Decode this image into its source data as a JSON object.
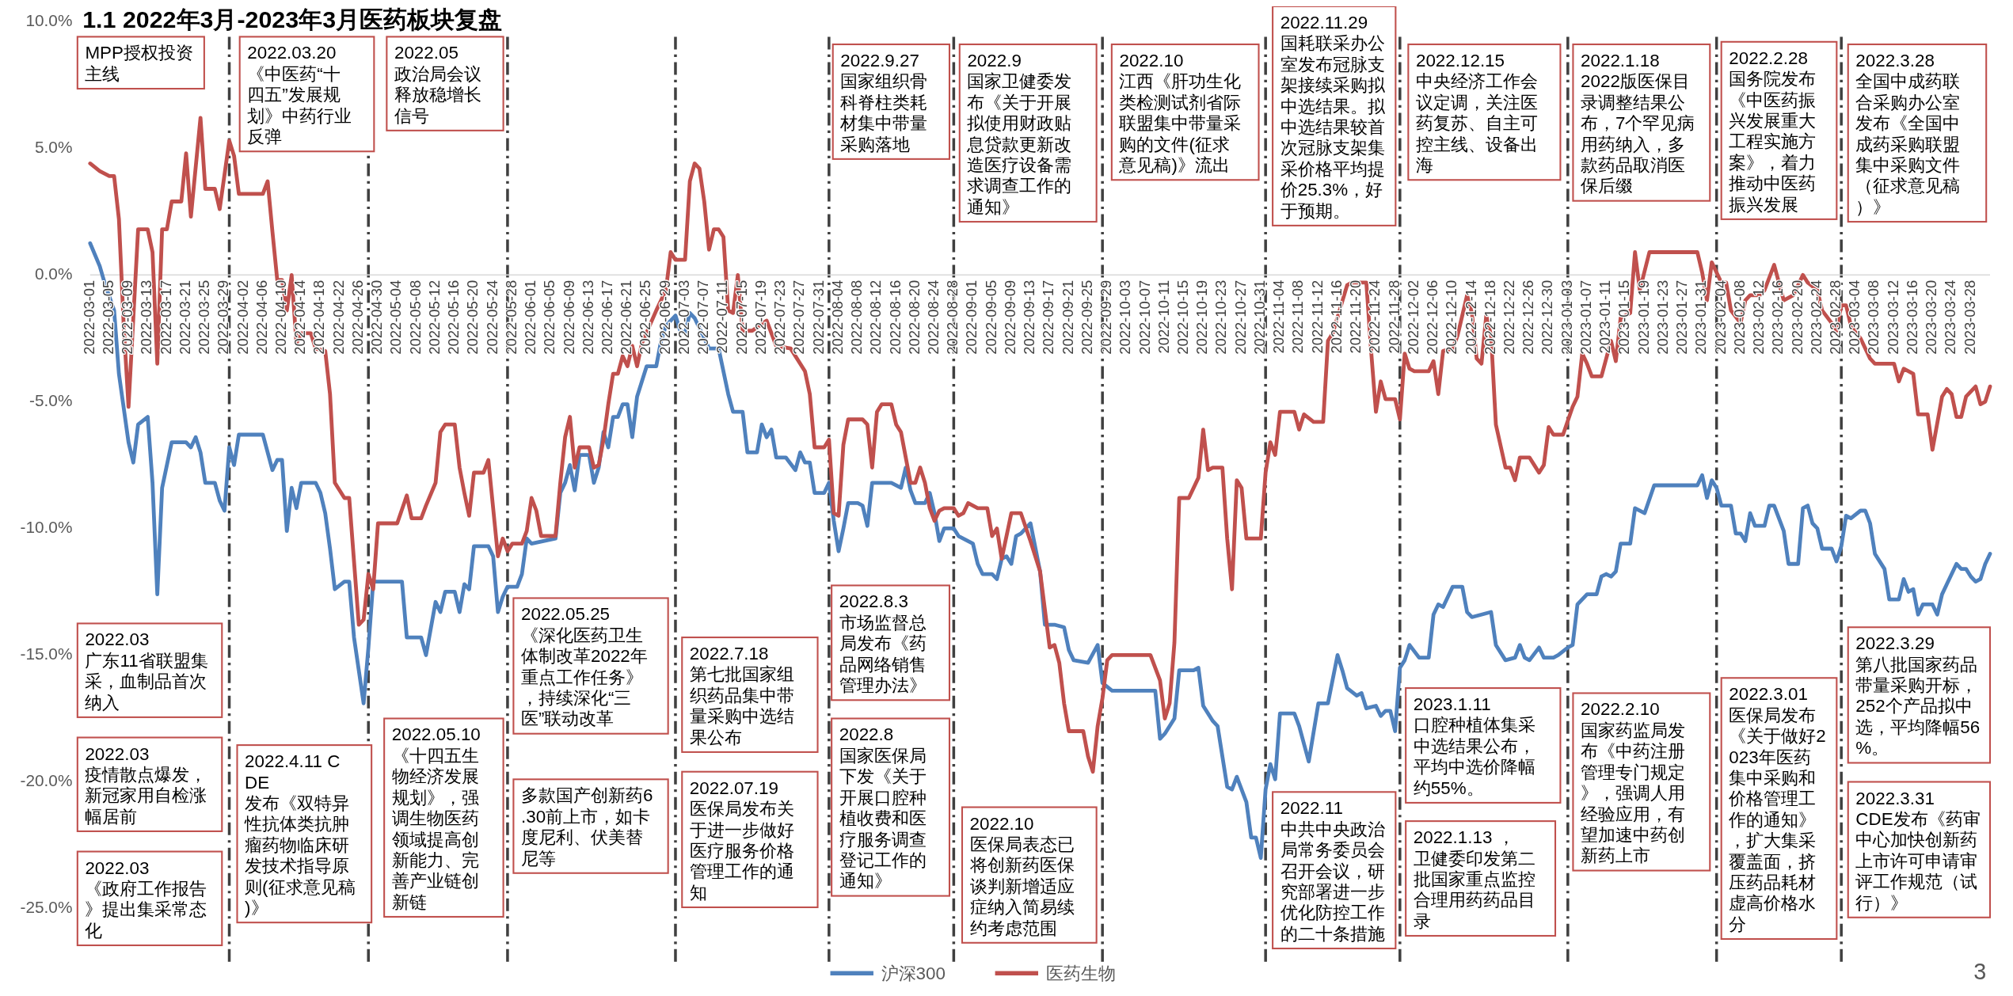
{
  "chart_data": {
    "type": "line",
    "title": "1.1 2022年3月-2023年3月医药板块复盘",
    "xlim": [
      "2022-03-01",
      "2023-04-01"
    ],
    "xticks": [
      "2022-03-01",
      "2022-03-05",
      "2022-03-09",
      "2022-03-13",
      "2022-03-17",
      "2022-03-21",
      "2022-03-25",
      "2022-03-29",
      "2022-04-02",
      "2022-04-06",
      "2022-04-10",
      "2022-04-14",
      "2022-04-18",
      "2022-04-22",
      "2022-04-26",
      "2022-04-30",
      "2022-05-04",
      "2022-05-08",
      "2022-05-12",
      "2022-05-16",
      "2022-05-20",
      "2022-05-24",
      "2022-05-28",
      "2022-06-01",
      "2022-06-05",
      "2022-06-09",
      "2022-06-13",
      "2022-06-17",
      "2022-06-21",
      "2022-06-25",
      "2022-06-29",
      "2022-07-03",
      "2022-07-07",
      "2022-07-11",
      "2022-07-15",
      "2022-07-19",
      "2022-07-23",
      "2022-07-27",
      "2022-07-31",
      "2022-08-04",
      "2022-08-08",
      "2022-08-12",
      "2022-08-16",
      "2022-08-20",
      "2022-08-24",
      "2022-08-28",
      "2022-09-01",
      "2022-09-05",
      "2022-09-09",
      "2022-09-13",
      "2022-09-17",
      "2022-09-21",
      "2022-09-25",
      "2022-09-29",
      "2022-10-03",
      "2022-10-07",
      "2022-10-11",
      "2022-10-15",
      "2022-10-19",
      "2022-10-23",
      "2022-10-27",
      "2022-10-31",
      "2022-11-04",
      "2022-11-08",
      "2022-11-12",
      "2022-11-16",
      "2022-11-20",
      "2022-11-24",
      "2022-11-28",
      "2022-12-02",
      "2022-12-06",
      "2022-12-10",
      "2022-12-14",
      "2022-12-18",
      "2022-12-22",
      "2022-12-26",
      "2022-12-30",
      "2023-01-03",
      "2023-01-07",
      "2023-01-11",
      "2023-01-15",
      "2023-01-19",
      "2023-01-23",
      "2023-01-27",
      "2023-01-31",
      "2023-02-04",
      "2023-02-08",
      "2023-02-12",
      "2023-02-16",
      "2023-02-20",
      "2023-02-24",
      "2023-02-28",
      "2023-03-04",
      "2023-03-08",
      "2023-03-12",
      "2023-03-16",
      "2023-03-20",
      "2023-03-24",
      "2023-03-28"
    ],
    "ylim": [
      -25,
      10
    ],
    "yticks": [
      {
        "value": 10,
        "label": "10.0%"
      },
      {
        "value": 5,
        "label": "5.0%"
      },
      {
        "value": 0,
        "label": "0.0%"
      },
      {
        "value": -5,
        "label": "-5.0%"
      },
      {
        "value": -10,
        "label": "-10.0%"
      },
      {
        "value": -15,
        "label": "-15.0%"
      },
      {
        "value": -20,
        "label": "-20.0%"
      },
      {
        "value": -25,
        "label": "-25.0%"
      }
    ],
    "legend": "bottom",
    "series": [
      {
        "name": "沪深300",
        "color": "#4f81bd",
        "x": [
          "2022-03-01",
          "2022-03-03",
          "2022-03-04",
          "2022-03-06",
          "2022-03-07",
          "2022-03-09",
          "2022-03-10",
          "2022-03-11",
          "2022-03-13",
          "2022-03-14",
          "2022-03-15",
          "2022-03-16",
          "2022-03-18",
          "2022-03-21",
          "2022-03-22",
          "2022-03-23",
          "2022-03-24",
          "2022-03-25",
          "2022-03-27",
          "2022-03-28",
          "2022-03-29",
          "2022-03-30",
          "2022-03-31",
          "2022-04-01",
          "2022-04-06",
          "2022-04-08",
          "2022-04-09",
          "2022-04-10",
          "2022-04-11",
          "2022-04-12",
          "2022-04-13",
          "2022-04-14",
          "2022-04-17",
          "2022-04-18",
          "2022-04-19",
          "2022-04-20",
          "2022-04-21",
          "2022-04-23",
          "2022-04-24",
          "2022-04-25",
          "2022-04-27",
          "2022-04-28",
          "2022-04-29",
          "2022-05-05",
          "2022-05-06",
          "2022-05-09",
          "2022-05-10",
          "2022-05-12",
          "2022-05-13",
          "2022-05-14",
          "2022-05-16",
          "2022-05-17",
          "2022-05-18",
          "2022-05-19",
          "2022-05-20",
          "2022-05-23",
          "2022-05-24",
          "2022-05-25",
          "2022-05-26",
          "2022-05-27",
          "2022-05-29",
          "2022-05-30",
          "2022-05-31",
          "2022-06-01",
          "2022-06-06",
          "2022-06-07",
          "2022-06-08",
          "2022-06-09",
          "2022-06-10",
          "2022-06-11",
          "2022-06-13",
          "2022-06-14",
          "2022-06-15",
          "2022-06-16",
          "2022-06-17",
          "2022-06-18",
          "2022-06-19",
          "2022-06-20",
          "2022-06-21",
          "2022-06-22",
          "2022-06-23",
          "2022-06-25",
          "2022-06-27",
          "2022-06-28",
          "2022-06-29",
          "2022-07-01",
          "2022-07-02",
          "2022-07-03",
          "2022-07-04",
          "2022-07-05",
          "2022-07-07",
          "2022-07-08",
          "2022-07-10",
          "2022-07-12",
          "2022-07-13",
          "2022-07-15",
          "2022-07-16",
          "2022-07-18",
          "2022-07-19",
          "2022-07-20",
          "2022-07-21",
          "2022-07-22",
          "2022-07-24",
          "2022-07-26",
          "2022-07-27",
          "2022-07-28",
          "2022-07-29",
          "2022-07-30",
          "2022-08-01",
          "2022-08-02",
          "2022-08-03",
          "2022-08-04",
          "2022-08-05",
          "2022-08-06",
          "2022-08-08",
          "2022-08-09",
          "2022-08-10",
          "2022-08-11",
          "2022-08-15",
          "2022-08-17",
          "2022-08-18",
          "2022-08-19",
          "2022-08-20",
          "2022-08-22",
          "2022-08-23",
          "2022-08-24",
          "2022-08-25",
          "2022-08-26",
          "2022-08-28",
          "2022-08-29",
          "2022-09-01",
          "2022-09-02",
          "2022-09-03",
          "2022-09-05",
          "2022-09-06",
          "2022-09-07",
          "2022-09-08",
          "2022-09-09",
          "2022-09-10",
          "2022-09-11",
          "2022-09-13",
          "2022-09-15",
          "2022-09-16",
          "2022-09-18",
          "2022-09-20",
          "2022-09-21",
          "2022-09-22",
          "2022-09-25",
          "2022-09-27",
          "2022-09-28",
          "2022-09-30",
          "2022-10-09",
          "2022-10-10",
          "2022-10-11",
          "2022-10-13",
          "2022-10-14",
          "2022-10-17",
          "2022-10-18",
          "2022-10-19",
          "2022-10-21",
          "2022-10-22",
          "2022-10-24",
          "2022-10-25",
          "2022-10-26",
          "2022-10-28",
          "2022-10-29",
          "2022-10-30",
          "2022-10-31",
          "2022-11-01",
          "2022-11-02",
          "2022-11-03",
          "2022-11-04",
          "2022-11-07",
          "2022-11-08",
          "2022-11-10",
          "2022-11-12",
          "2022-11-14",
          "2022-11-16",
          "2022-11-17",
          "2022-11-18",
          "2022-11-20",
          "2022-11-21",
          "2022-11-22",
          "2022-11-24",
          "2022-11-25",
          "2022-11-26",
          "2022-11-27",
          "2022-11-28",
          "2022-11-29",
          "2022-11-30",
          "2022-12-01",
          "2022-12-03",
          "2022-12-05",
          "2022-12-06",
          "2022-12-07",
          "2022-12-08",
          "2022-12-10",
          "2022-12-12",
          "2022-12-13",
          "2022-12-14",
          "2022-12-16",
          "2022-12-18",
          "2022-12-19",
          "2022-12-21",
          "2022-12-23",
          "2022-12-24",
          "2022-12-25",
          "2022-12-26",
          "2022-12-28",
          "2022-12-29",
          "2022-12-31",
          "2023-01-01",
          "2023-01-03",
          "2023-01-04",
          "2023-01-05",
          "2023-01-07",
          "2023-01-09",
          "2023-01-10",
          "2023-01-11",
          "2023-01-12",
          "2023-01-13",
          "2023-01-14",
          "2023-01-16",
          "2023-01-17",
          "2023-01-19",
          "2023-01-21",
          "2023-01-30",
          "2023-01-31",
          "2023-02-01",
          "2023-02-02",
          "2023-02-03",
          "2023-02-04",
          "2023-02-06",
          "2023-02-07",
          "2023-02-08",
          "2023-02-09",
          "2023-02-10",
          "2023-02-11",
          "2023-02-13",
          "2023-02-14",
          "2023-02-15",
          "2023-02-16",
          "2023-02-17",
          "2023-02-18",
          "2023-02-20",
          "2023-02-21",
          "2023-02-22",
          "2023-02-23",
          "2023-02-24",
          "2023-02-25",
          "2023-02-27",
          "2023-02-28",
          "2023-03-01",
          "2023-03-02",
          "2023-03-03",
          "2023-03-05",
          "2023-03-06",
          "2023-03-07",
          "2023-03-08",
          "2023-03-10",
          "2023-03-11",
          "2023-03-13",
          "2023-03-14",
          "2023-03-15",
          "2023-03-16",
          "2023-03-17",
          "2023-03-18",
          "2023-03-20",
          "2023-03-21",
          "2023-03-22",
          "2023-03-23",
          "2023-03-25",
          "2023-03-26",
          "2023-03-27",
          "2023-03-28",
          "2023-03-29",
          "2023-03-30",
          "2023-03-31",
          "2023-04-01"
        ],
        "values": [
          1.25,
          0.35,
          -0.3,
          -1.4,
          -3.9,
          -6.6,
          -7.4,
          -5.9,
          -5.6,
          -8.2,
          -12.6,
          -8.4,
          -6.6,
          -6.6,
          -6.8,
          -6.4,
          -7.0,
          -8.2,
          -8.2,
          -8.9,
          -9.3,
          -6.8,
          -7.5,
          -6.3,
          -6.3,
          -7.7,
          -7.3,
          -7.3,
          -10.1,
          -8.4,
          -9.2,
          -8.2,
          -8.2,
          -8.6,
          -9.4,
          -10.8,
          -12.4,
          -12.1,
          -12.1,
          -14.3,
          -16.9,
          -14.7,
          -12.1,
          -12.1,
          -14.3,
          -14.3,
          -15.0,
          -12.9,
          -13.3,
          -12.5,
          -12.5,
          -13.3,
          -12.2,
          -12.4,
          -10.7,
          -10.7,
          -11.1,
          -13.3,
          -12.7,
          -12.3,
          -12.3,
          -11.8,
          -10.4,
          -10.6,
          -10.4,
          -8.6,
          -8.2,
          -7.5,
          -8.5,
          -7.1,
          -7.1,
          -8.2,
          -7.6,
          -6.2,
          -6.8,
          -5.6,
          -5.6,
          -5.1,
          -5.1,
          -6.4,
          -4.8,
          -3.6,
          -3.6,
          -2.6,
          -2.0,
          -1.6,
          -2.2,
          -2.3,
          -1.5,
          -1.7,
          -2.5,
          -2.9,
          -2.9,
          -4.7,
          -5.4,
          -5.4,
          -7.0,
          -7.0,
          -5.9,
          -6.4,
          -6.1,
          -7.2,
          -7.2,
          -7.7,
          -7.0,
          -7.4,
          -7.4,
          -8.6,
          -8.6,
          -8.2,
          -9.7,
          -10.9,
          -10.0,
          -9.0,
          -9.0,
          -9.1,
          -9.9,
          -8.2,
          -8.2,
          -8.4,
          -7.6,
          -8.5,
          -9.0,
          -9.0,
          -8.6,
          -9.4,
          -10.5,
          -10.0,
          -10.0,
          -10.3,
          -10.6,
          -11.4,
          -11.8,
          -11.8,
          -12.0,
          -11.2,
          -11.1,
          -11.4,
          -10.3,
          -10.2,
          -9.8,
          -11.7,
          -13.8,
          -13.8,
          -13.9,
          -14.8,
          -15.2,
          -15.3,
          -14.6,
          -16.1,
          -16.4,
          -16.4,
          -18.3,
          -18.1,
          -17.5,
          -15.6,
          -15.6,
          -15.5,
          -17.0,
          -17.6,
          -17.8,
          -20.2,
          -20.3,
          -19.8,
          -20.8,
          -22.2,
          -22.2,
          -23.0,
          -20.3,
          -19.3,
          -19.9,
          -17.3,
          -17.3,
          -17.8,
          -19.2,
          -16.9,
          -16.9,
          -15.0,
          -15.6,
          -16.3,
          -16.6,
          -16.5,
          -17.1,
          -17.0,
          -17.4,
          -17.2,
          -17.2,
          -18.0,
          -15.5,
          -15.2,
          -14.6,
          -15.1,
          -15.1,
          -13.4,
          -13.0,
          -13.1,
          -12.3,
          -12.3,
          -13.3,
          -13.5,
          -13.4,
          -13.3,
          -14.6,
          -15.2,
          -15.1,
          -14.6,
          -15.1,
          -15.2,
          -14.7,
          -15.1,
          -15.1,
          -15.0,
          -14.7,
          -14.6,
          -13.0,
          -12.6,
          -12.6,
          -11.9,
          -11.8,
          -11.9,
          -11.7,
          -10.6,
          -10.6,
          -9.2,
          -9.4,
          -8.3,
          -8.3,
          -7.9,
          -8.8,
          -8.1,
          -8.4,
          -9.1,
          -9.1,
          -10.2,
          -10.2,
          -10.5,
          -9.4,
          -9.9,
          -9.9,
          -9.1,
          -9.1,
          -9.6,
          -10.1,
          -11.4,
          -11.4,
          -9.2,
          -9.1,
          -9.8,
          -10.0,
          -10.8,
          -10.8,
          -11.3,
          -10.7,
          -9.5,
          -9.6,
          -9.3,
          -9.3,
          -9.8,
          -11.0,
          -11.6,
          -12.8,
          -12.8,
          -12.0,
          -12.5,
          -12.4,
          -13.4,
          -13.0,
          -13.0,
          -13.4,
          -12.6,
          -12.2,
          -11.4,
          -11.6,
          -11.6,
          -11.9,
          -12.1,
          -12.0,
          -11.4,
          -11.0
        ]
      },
      {
        "name": "医药生物",
        "color": "#c0504d",
        "x": [
          "2022-03-01",
          "2022-03-03",
          "2022-03-05",
          "2022-03-06",
          "2022-03-07",
          "2022-03-08",
          "2022-03-09",
          "2022-03-11",
          "2022-03-13",
          "2022-03-14",
          "2022-03-15",
          "2022-03-16",
          "2022-03-17",
          "2022-03-18",
          "2022-03-20",
          "2022-03-21",
          "2022-03-22",
          "2022-03-24",
          "2022-03-25",
          "2022-03-27",
          "2022-03-28",
          "2022-03-30",
          "2022-03-31",
          "2022-04-01",
          "2022-04-06",
          "2022-04-07",
          "2022-04-08",
          "2022-04-09",
          "2022-04-10",
          "2022-04-11",
          "2022-04-12",
          "2022-04-13",
          "2022-04-14",
          "2022-04-16",
          "2022-04-17",
          "2022-04-19",
          "2022-04-20",
          "2022-04-21",
          "2022-04-23",
          "2022-04-24",
          "2022-04-26",
          "2022-04-27",
          "2022-04-28",
          "2022-04-29",
          "2022-04-30",
          "2022-05-04",
          "2022-05-06",
          "2022-05-07",
          "2022-05-09",
          "2022-05-10",
          "2022-05-12",
          "2022-05-13",
          "2022-05-14",
          "2022-05-16",
          "2022-05-17",
          "2022-05-18",
          "2022-05-19",
          "2022-05-20",
          "2022-05-22",
          "2022-05-23",
          "2022-05-25",
          "2022-05-26",
          "2022-05-27",
          "2022-05-28",
          "2022-05-30",
          "2022-05-31",
          "2022-06-01",
          "2022-06-02",
          "2022-06-03",
          "2022-06-06",
          "2022-06-07",
          "2022-06-08",
          "2022-06-09",
          "2022-06-10",
          "2022-06-11",
          "2022-06-13",
          "2022-06-14",
          "2022-06-15",
          "2022-06-16",
          "2022-06-17",
          "2022-06-18",
          "2022-06-19",
          "2022-06-20",
          "2022-06-21",
          "2022-06-22",
          "2022-06-23",
          "2022-06-24",
          "2022-06-27",
          "2022-06-29",
          "2022-06-30",
          "2022-07-01",
          "2022-07-03",
          "2022-07-04",
          "2022-07-05",
          "2022-07-06",
          "2022-07-07",
          "2022-07-08",
          "2022-07-09",
          "2022-07-10",
          "2022-07-11",
          "2022-07-12",
          "2022-07-13",
          "2022-07-14",
          "2022-07-15",
          "2022-07-17",
          "2022-07-20",
          "2022-07-22",
          "2022-07-25",
          "2022-07-28",
          "2022-07-29",
          "2022-07-30",
          "2022-08-01",
          "2022-08-02",
          "2022-08-03",
          "2022-08-04",
          "2022-08-05",
          "2022-08-06",
          "2022-08-09",
          "2022-08-10",
          "2022-08-11",
          "2022-08-12",
          "2022-08-13",
          "2022-08-15",
          "2022-08-16",
          "2022-08-17",
          "2022-08-18",
          "2022-08-19",
          "2022-08-20",
          "2022-08-21",
          "2022-08-22",
          "2022-08-23",
          "2022-08-24",
          "2022-08-25",
          "2022-08-26",
          "2022-08-28",
          "2022-08-29",
          "2022-08-30",
          "2022-08-31",
          "2022-09-02",
          "2022-09-04",
          "2022-09-05",
          "2022-09-06",
          "2022-09-07",
          "2022-09-09",
          "2022-09-11",
          "2022-09-13",
          "2022-09-15",
          "2022-09-17",
          "2022-09-18",
          "2022-09-19",
          "2022-09-20",
          "2022-09-21",
          "2022-09-24",
          "2022-09-25",
          "2022-09-26",
          "2022-09-27",
          "2022-09-28",
          "2022-09-29",
          "2022-09-30",
          "2022-10-08",
          "2022-10-10",
          "2022-10-11",
          "2022-10-12",
          "2022-10-13",
          "2022-10-14",
          "2022-10-16",
          "2022-10-18",
          "2022-10-19",
          "2022-10-20",
          "2022-10-21",
          "2022-10-23",
          "2022-10-24",
          "2022-10-25",
          "2022-10-26",
          "2022-10-27",
          "2022-10-28",
          "2022-10-31",
          "2022-11-01",
          "2022-11-02",
          "2022-11-03",
          "2022-11-04",
          "2022-11-07",
          "2022-11-08",
          "2022-11-09",
          "2022-11-11",
          "2022-11-13",
          "2022-11-14",
          "2022-11-15",
          "2022-11-18",
          "2022-11-19",
          "2022-11-22",
          "2022-11-23",
          "2022-11-24",
          "2022-11-25",
          "2022-11-26",
          "2022-11-28",
          "2022-11-29",
          "2022-11-30",
          "2022-12-01",
          "2022-12-02",
          "2022-12-05",
          "2022-12-06",
          "2022-12-07",
          "2022-12-08",
          "2022-12-10",
          "2022-12-11",
          "2022-12-13",
          "2022-12-14",
          "2022-12-15",
          "2022-12-16",
          "2022-12-17",
          "2022-12-18",
          "2022-12-19",
          "2022-12-21",
          "2022-12-22",
          "2022-12-23",
          "2022-12-24",
          "2022-12-26",
          "2022-12-27",
          "2022-12-28",
          "2022-12-29",
          "2022-12-30",
          "2022-12-31",
          "2023-01-02",
          "2023-01-04",
          "2023-01-05",
          "2023-01-06",
          "2023-01-07",
          "2023-01-08",
          "2023-01-10",
          "2023-01-11",
          "2023-01-12",
          "2023-01-13",
          "2023-01-14",
          "2023-01-16",
          "2023-01-17",
          "2023-01-18",
          "2023-01-20",
          "2023-01-30",
          "2023-01-31",
          "2023-02-01",
          "2023-02-02",
          "2023-02-04",
          "2023-02-05",
          "2023-02-06",
          "2023-02-08",
          "2023-02-09",
          "2023-02-10",
          "2023-02-12",
          "2023-02-13",
          "2023-02-15",
          "2023-02-17",
          "2023-02-19",
          "2023-02-21",
          "2023-02-22",
          "2023-02-24",
          "2023-02-25",
          "2023-02-27",
          "2023-02-28",
          "2023-03-01",
          "2023-03-02",
          "2023-03-03",
          "2023-03-05",
          "2023-03-07",
          "2023-03-08",
          "2023-03-10",
          "2023-03-12",
          "2023-03-13",
          "2023-03-14",
          "2023-03-16",
          "2023-03-17",
          "2023-03-19",
          "2023-03-20",
          "2023-03-22",
          "2023-03-23",
          "2023-03-24",
          "2023-03-25",
          "2023-03-26",
          "2023-03-27",
          "2023-03-29",
          "2023-03-30",
          "2023-03-31",
          "2023-04-01"
        ],
        "values": [
          4.4,
          4.1,
          3.9,
          3.9,
          2.2,
          -2.0,
          -5.2,
          1.8,
          1.8,
          0.9,
          -3.5,
          1.8,
          1.8,
          2.9,
          2.9,
          4.8,
          2.3,
          6.2,
          3.4,
          3.4,
          2.6,
          5.3,
          4.7,
          3.2,
          3.2,
          3.7,
          1.7,
          -0.2,
          -0.2,
          -1.4,
          0.0,
          -2.7,
          -2.3,
          -2.3,
          -2.9,
          -3.0,
          -4.7,
          -8.2,
          -8.8,
          -8.8,
          -13.8,
          -13.6,
          -11.8,
          -12.4,
          -9.8,
          -9.8,
          -8.7,
          -9.6,
          -9.6,
          -9.1,
          -8.2,
          -6.2,
          -5.9,
          -5.9,
          -7.6,
          -8.6,
          -9.5,
          -7.8,
          -7.8,
          -7.3,
          -11.1,
          -10.4,
          -10.9,
          -10.6,
          -10.6,
          -10.1,
          -8.8,
          -9.3,
          -10.3,
          -10.3,
          -8.2,
          -6.4,
          -5.6,
          -7.6,
          -6.8,
          -6.8,
          -7.6,
          -7.5,
          -6.5,
          -5.1,
          -3.9,
          -3.9,
          -3.2,
          -3.6,
          -2.8,
          -3.6,
          -2.7,
          -1.4,
          -0.6,
          0.9,
          0.6,
          0.6,
          3.7,
          4.4,
          4.2,
          2.9,
          1.0,
          1.8,
          1.8,
          1.5,
          -1.4,
          -1.5,
          0.0,
          -2.2,
          -2.2,
          -1.8,
          -2.8,
          -2.9,
          -3.8,
          -4.7,
          -6.8,
          -6.8,
          -6.5,
          -9.4,
          -9.5,
          -6.7,
          -5.7,
          -5.7,
          -5.9,
          -7.6,
          -5.4,
          -5.1,
          -5.1,
          -5.9,
          -6.2,
          -7.2,
          -8.2,
          -8.2,
          -7.6,
          -8.2,
          -9.2,
          -9.7,
          -9.3,
          -9.2,
          -9.2,
          -9.5,
          -9.4,
          -9.0,
          -9.2,
          -9.2,
          -10.3,
          -10.0,
          -11.2,
          -9.4,
          -9.4,
          -10.5,
          -11.7,
          -14.7,
          -14.6,
          -15.3,
          -16.9,
          -18.0,
          -18.0,
          -19.0,
          -19.6,
          -17.8,
          -16.7,
          -15.2,
          -15.0,
          -15.0,
          -16.0,
          -17.5,
          -16.9,
          -14.5,
          -8.8,
          -8.8,
          -8.0,
          -6.1,
          -7.7,
          -7.6,
          -7.6,
          -10.4,
          -12.4,
          -8.1,
          -8.4,
          -10.4,
          -10.4,
          -7.8,
          -6.6,
          -7.1,
          -5.4,
          -5.4,
          -6.1,
          -5.5,
          -5.8,
          -5.8,
          -2.6,
          -2.3,
          -0.4,
          -0.3,
          -0.3,
          -3.0,
          -5.4,
          -4.2,
          -4.9,
          -4.9,
          -5.7,
          -3.1,
          -3.7,
          -3.8,
          -3.8,
          -3.4,
          -4.7,
          -3.0,
          -2.9,
          -2.4,
          -0.8,
          -1.5,
          -3.3,
          -3.5,
          -1.6,
          -2.4,
          -5.9,
          -7.6,
          -7.6,
          -8.1,
          -7.2,
          -7.2,
          -7.5,
          -7.8,
          -7.5,
          -6.0,
          -6.3,
          -6.3,
          -5.2,
          -4.8,
          -3.1,
          -3.5,
          -4.0,
          -4.0,
          -3.3,
          -2.6,
          -3.4,
          -1.7,
          -1.5,
          0.9,
          -0.6,
          0.9,
          0.9,
          0.1,
          -1.0,
          0.5,
          -0.3,
          -0.3,
          -1.4,
          -1.9,
          -1.0,
          -0.8,
          -0.8,
          -0.6,
          0.4,
          -1.0,
          -0.8,
          0.0,
          -0.3,
          -0.6,
          -1.4,
          -1.9,
          -2.2,
          -1.2,
          -1.2,
          -2.0,
          -2.5,
          -3.3,
          -3.5,
          -3.5,
          -3.5,
          -4.2,
          -3.7,
          -3.9,
          -5.5,
          -5.5,
          -6.9,
          -4.8,
          -4.5,
          -4.7,
          -5.6,
          -5.6,
          -4.8,
          -4.4,
          -5.1,
          -5.0,
          -4.4
        ]
      }
    ],
    "ref_lines": [
      {
        "axis": "x",
        "value": "2022-03-30",
        "color": "#404040",
        "line_style": "dashed"
      },
      {
        "axis": "x",
        "value": "2022-04-28",
        "color": "#404040",
        "line_style": "dashed"
      },
      {
        "axis": "x",
        "value": "2022-05-27",
        "color": "#404040",
        "line_style": "dashed"
      },
      {
        "axis": "x",
        "value": "2022-07-01",
        "color": "#404040",
        "line_style": "dashed"
      },
      {
        "axis": "x",
        "value": "2022-08-02",
        "color": "#404040",
        "line_style": "dashed"
      },
      {
        "axis": "x",
        "value": "2022-08-28",
        "color": "#404040",
        "line_style": "dashed"
      },
      {
        "axis": "x",
        "value": "2022-09-28",
        "color": "#404040",
        "line_style": "dashed"
      },
      {
        "axis": "x",
        "value": "2022-11-01",
        "color": "#404040",
        "line_style": "dashed"
      },
      {
        "axis": "x",
        "value": "2022-11-29",
        "color": "#404040",
        "line_style": "dashed"
      },
      {
        "axis": "x",
        "value": "2023-01-03",
        "color": "#404040",
        "line_style": "dashed"
      },
      {
        "axis": "x",
        "value": "2023-02-03",
        "color": "#404040",
        "line_style": "dashed"
      },
      {
        "axis": "x",
        "value": "2023-03-01",
        "color": "#404040",
        "line_style": "dashed"
      }
    ],
    "annotations": [
      "MPP授权投资主线",
      "2022.03.20\n《中医药“十四五”发展规划》中药行业反弹",
      "2022.05\n政治局会议释放稳增长信号",
      "2022.9.27\n国家组织骨科脊柱类耗材集中带量采购落地",
      "2022.9\n国家卫健委发布《关于开展拟使用财政贴息贷款更新改造医疗设备需求调查工作的通知》",
      "2022.10\n江西《肝功生化类检测试剂省际联盟集中带量采购的文件(征求意见稿)》流出",
      "2022.11.29\n国耗联采办公室发布冠脉支架接续采购拟中选结果。拟中选结果较首次冠脉支架集采价格平均提价25.3%，好于预期。",
      "2022.12.15\n中央经济工作会议定调，关注医药复苏、自主可控主线、设备出海",
      "2022.1.18\n2022版医保目录调整结果公布，7个罕见病用药纳入，多款药品取消医保后缀",
      "2022.2.28\n国务院发布《中医药振兴发展重大工程实施方案》，着力推动中医药振兴发展",
      "2022.3.28\n全国中成药联合采购办公室发布《全国中成药采购联盟集中采购文件（征求意见稿）》",
      "2022.03\n广东11省联盟集采，血制品首次纳入",
      "2022.03\n疫情散点爆发，新冠家用自检涨幅居前",
      "2022.03\n《政府工作报告》提出集采常态化",
      "2022.4.11 CDE\n发布《双特异性抗体类抗肿瘤药物临床研发技术指导原则(征求意见稿)》",
      "2022.05.10\n《十四五生物经济发展规划》，强调生物医药领域提高创新能力、完善产业链创新链",
      "2022.05.25\n《深化医药卫生体制改革2022年重点工作任务》，持续深化“三医”联动改革",
      "多款国产创新药6.30前上市，如卡度尼利、伏美替尼等",
      "2022.7.18\n第七批国家组织药品集中带量采购中选结果公布",
      "2022.07.19\n医保局发布关于进一步做好医疗服务价格管理工作的通知",
      "2022.8.3\n市场监督总局发布《药品网络销售管理办法》",
      "2022.8\n国家医保局下发《关于开展口腔种植收费和医疗服务调查登记工作的通知》",
      "2022.10\n医保局表态已将创新药医保谈判新增适应症纳入简易续约考虑范围",
      "2022.11\n中共中央政治局常务委员会召开会议，研究部署进一步优化防控工作的二十条措施",
      "2023.1.11\n口腔种植体集采中选结果公布，平均中选价降幅约55%。",
      "2022.1.13 ，卫健委印发第二批国家重点监控合理用药药品目录",
      "2022.2.10\n国家药监局发布《中药注册管理专门规定》，强调人用经验应用，有望加速中药创新药上市",
      "2022.3.01\n医保局发布《关于做好2023年医药集中采购和价格管理工作的通知》，扩大集采覆盖面，挤压药品耗材虚高价格水分",
      "2022.3.29\n第八批国家药品带量采购开标，252个产品拟中选，平均降幅56%。",
      "2022.3.31\nCDE发布《药审中心加快创新药上市许可申请审评工作规范（试行）》",
      "3"
    ]
  }
}
